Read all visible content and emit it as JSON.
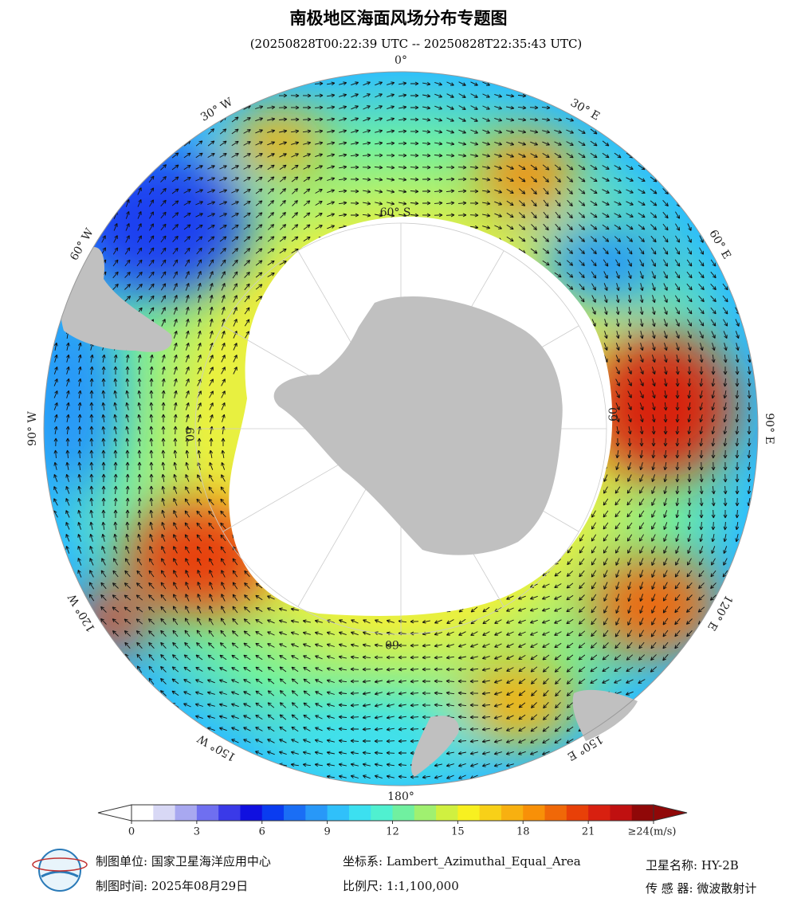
{
  "header": {
    "title": "南极地区海面风场分布专题图",
    "subtitle": "(20250828T00:22:39 UTC -- 20250828T22:35:43 UTC)"
  },
  "map": {
    "longitude_labels": [
      "0°",
      "30° E",
      "60° E",
      "90° E",
      "120° E",
      "150° E",
      "180°",
      "150° W",
      "120° W",
      "90° W",
      "60° W",
      "30° W"
    ],
    "latitude_labels": [
      "60° S",
      "60",
      "60",
      "60"
    ]
  },
  "colorbar": {
    "ticks": [
      0,
      3,
      6,
      9,
      12,
      15,
      18,
      21,
      {
        "value": 24,
        "label": "≥24(m/s)"
      }
    ],
    "range": [
      0,
      24
    ],
    "colors": [
      "#ffffff",
      "#d8d8f5",
      "#a8a8f0",
      "#6f6ff0",
      "#3a3ae8",
      "#1010e0",
      "#0a3cf0",
      "#1a6ef5",
      "#2898f8",
      "#30c0fa",
      "#3ce0f0",
      "#50f0d0",
      "#70f0a0",
      "#a0f070",
      "#d0f040",
      "#f8f020",
      "#f8d018",
      "#f8b010",
      "#f89008",
      "#f06808",
      "#e84008",
      "#d82010",
      "#c01010",
      "#900808"
    ]
  },
  "footer": {
    "unit": "制图单位: 国家卫星海洋应用中心",
    "date": "制图时间: 2025年08月29日",
    "crs": "坐标系: Lambert_Azimuthal_Equal_Area",
    "scale": "比例尺: 1:1,100,000",
    "satellite": "卫星名称: HY-2B",
    "sensor": "传 感 器: 微波散射计"
  }
}
